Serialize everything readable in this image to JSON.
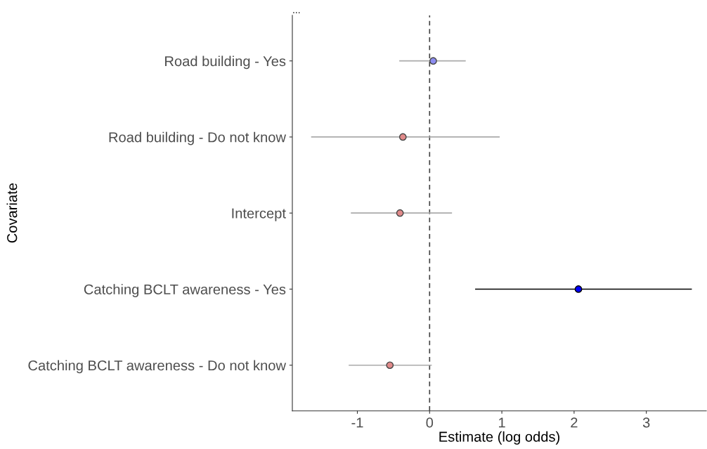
{
  "chart_data": {
    "type": "scatter",
    "title": "...",
    "xlabel": "Estimate (log odds)",
    "ylabel": "Covariate",
    "categories": [
      "Road building - Yes",
      "Road building - Do not know",
      "Intercept",
      "Catching BCLT awareness - Yes",
      "Catching BCLT awareness - Do not know"
    ],
    "series": [
      {
        "color": "#aaaaaa",
        "colors": [
          "#8c8cf0",
          "#e08a8a",
          "#e08a8a",
          null,
          "#e08a8a"
        ],
        "values": [
          0.05,
          -0.37,
          -0.41,
          null,
          -0.55
        ],
        "errors": [
          [
            -0.42,
            0.5
          ],
          [
            -1.64,
            0.97
          ],
          [
            -1.09,
            0.31
          ],
          null,
          [
            -1.12,
            0.03
          ]
        ]
      },
      {
        "color": "#000000",
        "colors": [
          null,
          null,
          null,
          "#0000ff",
          null
        ],
        "values": [
          null,
          null,
          null,
          2.06,
          null
        ],
        "errors": [
          null,
          null,
          null,
          [
            0.63,
            3.63
          ],
          null
        ]
      }
    ],
    "orientation": "horizontal",
    "xlim": [
      -1.9,
      3.83
    ],
    "xticks": [
      -1,
      0,
      1,
      2,
      3
    ],
    "ref_lines": [
      {
        "axis": "x",
        "value": 0,
        "color": "#444444",
        "line_style": "dashed"
      }
    ],
    "grid": false,
    "legend": false,
    "marker": "circle"
  }
}
